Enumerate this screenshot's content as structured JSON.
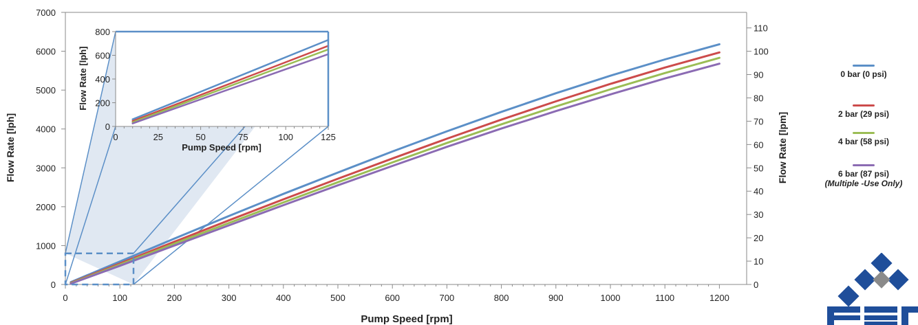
{
  "colors": {
    "series": [
      "#5b8fc7",
      "#cc4b4b",
      "#9bbd55",
      "#8b6bb3"
    ],
    "axis": "#8a8a8a",
    "zoom_box": "#5b8fc7",
    "zoom_fill": "#c7d6e8",
    "logo": "#1f4e9a",
    "logo_gray": "#8a8a8a"
  },
  "legend": {
    "items": [
      {
        "label": "0 bar (0 psi)",
        "note": ""
      },
      {
        "label": "2 bar (29 psi)",
        "note": ""
      },
      {
        "label": "4 bar (58 psi)",
        "note": ""
      },
      {
        "label": "6 bar (87 psi)",
        "note": "(Multiple -Use Only)"
      }
    ]
  },
  "logo": {
    "text": "PSG",
    "icon": "diamond-logo"
  },
  "chart_data": {
    "type": "line",
    "main": {
      "xlabel": "Pump Speed [rpm]",
      "ylabel": "Flow Rate [lph]",
      "y2label": "Flow Rate [lpm]",
      "xlim": [
        0,
        1250
      ],
      "ylim": [
        0,
        7000
      ],
      "y2lim": [
        0,
        116.67
      ],
      "xticks": [
        0,
        100,
        200,
        300,
        400,
        500,
        600,
        700,
        800,
        900,
        1000,
        1100,
        1200
      ],
      "yticks": [
        0,
        1000,
        2000,
        3000,
        4000,
        5000,
        6000,
        7000
      ],
      "y2ticks": [
        0,
        10,
        20,
        30,
        40,
        50,
        60,
        70,
        80,
        90,
        100,
        110
      ],
      "grid": false,
      "x": [
        10,
        100,
        200,
        300,
        400,
        500,
        600,
        700,
        800,
        900,
        1000,
        1100,
        1200
      ],
      "series": [
        {
          "name": "0 bar (0 psi)",
          "values": [
            60,
            590,
            1180,
            1760,
            2330,
            2880,
            3420,
            3940,
            4440,
            4920,
            5370,
            5790,
            6180
          ]
        },
        {
          "name": "2 bar (29 psi)",
          "values": [
            40,
            540,
            1100,
            1650,
            2190,
            2720,
            3240,
            3750,
            4240,
            4710,
            5160,
            5580,
            5970
          ]
        },
        {
          "name": "4 bar (58 psi)",
          "values": [
            30,
            510,
            1050,
            1580,
            2110,
            2630,
            3140,
            3640,
            4120,
            4580,
            5020,
            5440,
            5830
          ]
        },
        {
          "name": "6 bar (87 psi)",
          "values": [
            20,
            480,
            1000,
            1520,
            2040,
            2550,
            3050,
            3540,
            4010,
            4460,
            4890,
            5300,
            5680
          ]
        }
      ],
      "zoom_region": {
        "x": [
          0,
          125
        ],
        "y": [
          0,
          800
        ]
      }
    },
    "inset": {
      "xlabel": "Pump Speed [rpm]",
      "ylabel": "Flow Rate  [lph]",
      "xlim": [
        0,
        125
      ],
      "ylim": [
        0,
        800
      ],
      "xticks": [
        0,
        25,
        50,
        75,
        100,
        125
      ],
      "yticks": [
        0,
        200,
        400,
        600,
        800
      ],
      "x": [
        10,
        125
      ],
      "series": [
        {
          "name": "0 bar (0 psi)",
          "values": [
            60,
            730
          ]
        },
        {
          "name": "2 bar (29 psi)",
          "values": [
            45,
            680
          ]
        },
        {
          "name": "4 bar (58 psi)",
          "values": [
            35,
            650
          ]
        },
        {
          "name": "6 bar (87 psi)",
          "values": [
            25,
            610
          ]
        }
      ]
    }
  }
}
